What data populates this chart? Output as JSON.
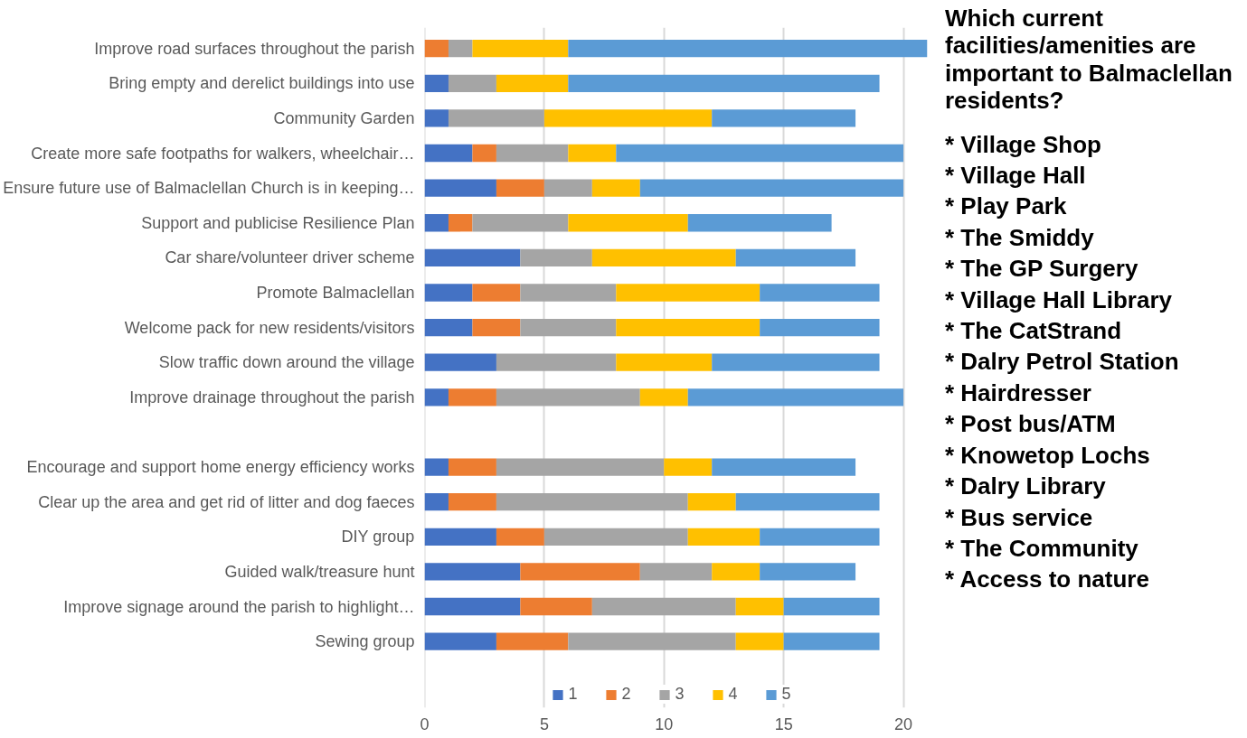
{
  "chart_data": {
    "type": "bar",
    "orientation": "horizontal",
    "stacked": true,
    "categories": [
      "Improve road surfaces throughout the parish",
      "Bring empty and derelict buildings into use",
      "Community Garden",
      "Create more safe footpaths for walkers, wheelchair…",
      "Ensure future use of Balmaclellan Church is in keeping…",
      "Support and publicise Resilience Plan",
      "Car share/volunteer driver scheme",
      "Promote Balmaclellan",
      "Welcome pack for new residents/visitors",
      "Slow traffic down around the village",
      "Improve drainage throughout the parish",
      null,
      "Encourage and support home energy efficiency works",
      "Clear up the area and get rid of litter and dog faeces",
      "DIY group",
      "Guided walk/treasure hunt",
      "Improve signage around the parish to highlight…",
      "Sewing group"
    ],
    "series": [
      {
        "name": "1",
        "color": "#4472c4",
        "values": [
          0,
          1,
          1,
          2,
          3,
          1,
          4,
          2,
          2,
          3,
          1,
          null,
          1,
          1,
          3,
          4,
          4,
          3
        ]
      },
      {
        "name": "2",
        "color": "#ed7d31",
        "values": [
          1,
          0,
          0,
          1,
          2,
          1,
          0,
          2,
          2,
          0,
          2,
          null,
          2,
          2,
          2,
          5,
          3,
          3
        ]
      },
      {
        "name": "3",
        "color": "#a5a5a5",
        "values": [
          1,
          2,
          4,
          3,
          2,
          4,
          3,
          4,
          4,
          5,
          6,
          null,
          7,
          8,
          6,
          3,
          6,
          7
        ]
      },
      {
        "name": "4",
        "color": "#ffc000",
        "values": [
          4,
          3,
          7,
          2,
          2,
          5,
          6,
          6,
          6,
          4,
          2,
          null,
          2,
          2,
          3,
          2,
          2,
          2
        ]
      },
      {
        "name": "5",
        "color": "#5b9bd5",
        "values": [
          15,
          13,
          6,
          12,
          11,
          6,
          5,
          5,
          5,
          7,
          9,
          null,
          6,
          6,
          5,
          4,
          4,
          4
        ]
      }
    ],
    "xlim": [
      0,
      21
    ],
    "xticks": [
      0,
      5,
      10,
      15,
      20
    ],
    "grid": "x",
    "legend": "bottom",
    "annotations": [
      "Which current facilities/amenities are important to Balmaclellan residents?",
      "* Village Shop",
      "* Village Hall",
      "* Play Park",
      "* The Smiddy",
      "* The GP Surgery",
      "* Village Hall Library",
      "* The CatStrand",
      "* Dalry Petrol Station",
      "* Hairdresser",
      "* Post bus/ATM",
      "* Knowetop Lochs",
      "* Dalry Library",
      "* Bus service",
      "* The Community",
      "* Access to nature"
    ]
  }
}
